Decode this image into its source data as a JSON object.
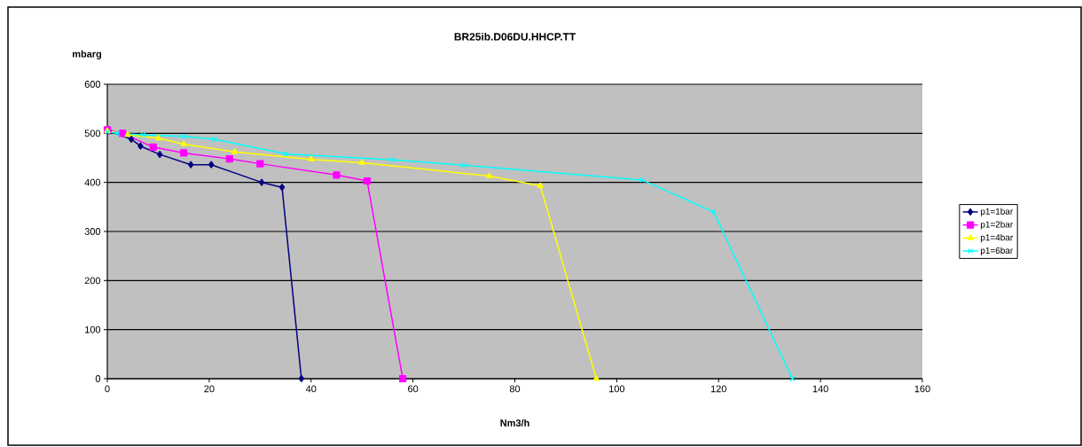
{
  "chart_data": {
    "type": "line",
    "title": "BR25ib.D06DU.HHCP.TT",
    "xlabel": "Nm3/h",
    "ylabel": "mbarg",
    "xlim": [
      0,
      160
    ],
    "xticks": [
      0,
      20,
      40,
      60,
      80,
      100,
      120,
      140,
      160
    ],
    "ylim": [
      0,
      600
    ],
    "yticks": [
      0,
      100,
      200,
      300,
      400,
      500,
      600
    ],
    "grid": "y",
    "legend": "right",
    "series": [
      {
        "name": "p1=1bar",
        "color": "#000080",
        "marker": "diamond",
        "x": [
          0.3,
          4.7,
          6.5,
          10.3,
          16.4,
          20.4,
          30.3,
          34.3,
          38.1
        ],
        "values": [
          505,
          488,
          474,
          457,
          436,
          436,
          400,
          390,
          0
        ]
      },
      {
        "name": "p1=2bar",
        "color": "#ff00ff",
        "marker": "square",
        "x": [
          0,
          3,
          9,
          15,
          24,
          30,
          45,
          51,
          58
        ],
        "values": [
          507,
          500,
          472,
          460,
          448,
          438,
          415,
          403,
          0
        ]
      },
      {
        "name": "p1=4bar",
        "color": "#ffff00",
        "marker": "triangle",
        "x": [
          0,
          4,
          10,
          15,
          25,
          40,
          50,
          75,
          85,
          96
        ],
        "values": [
          505,
          497,
          490,
          478,
          462,
          447,
          440,
          413,
          393,
          0
        ]
      },
      {
        "name": "p1=6bar",
        "color": "#00ffff",
        "marker": "cross",
        "x": [
          0,
          2,
          7,
          15,
          21,
          35,
          56,
          70,
          105,
          119,
          134.5
        ],
        "values": [
          503,
          500,
          497,
          494,
          488,
          458,
          446,
          435,
          405,
          340,
          0
        ]
      }
    ]
  }
}
